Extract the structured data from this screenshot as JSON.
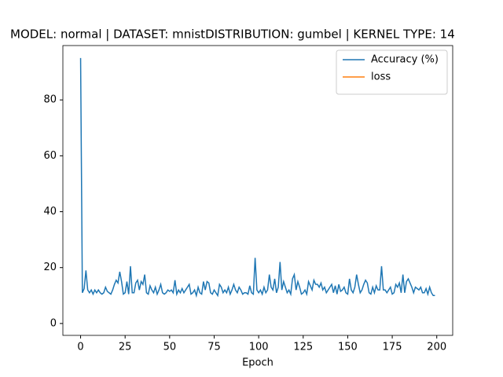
{
  "chart_data": {
    "type": "line",
    "title": "MODEL: normal | DATASET: mnistDISTRIBUTION: gumbel | KERNEL TYPE: 14",
    "x_label": "Epoch",
    "x": [
      0,
      1,
      2,
      3,
      4,
      5,
      6,
      7,
      8,
      9,
      10,
      11,
      12,
      13,
      14,
      15,
      16,
      17,
      18,
      19,
      20,
      21,
      22,
      23,
      24,
      25,
      26,
      27,
      28,
      29,
      30,
      31,
      32,
      33,
      34,
      35,
      36,
      37,
      38,
      39,
      40,
      41,
      42,
      43,
      44,
      45,
      46,
      47,
      48,
      49,
      50,
      51,
      52,
      53,
      54,
      55,
      56,
      57,
      58,
      59,
      60,
      61,
      62,
      63,
      64,
      65,
      66,
      67,
      68,
      69,
      70,
      71,
      72,
      73,
      74,
      75,
      76,
      77,
      78,
      79,
      80,
      81,
      82,
      83,
      84,
      85,
      86,
      87,
      88,
      89,
      90,
      91,
      92,
      93,
      94,
      95,
      96,
      97,
      98,
      99,
      100,
      101,
      102,
      103,
      104,
      105,
      106,
      107,
      108,
      109,
      110,
      111,
      112,
      113,
      114,
      115,
      116,
      117,
      118,
      119,
      120,
      121,
      122,
      123,
      124,
      125,
      126,
      127,
      128,
      129,
      130,
      131,
      132,
      133,
      134,
      135,
      136,
      137,
      138,
      139,
      140,
      141,
      142,
      143,
      144,
      145,
      146,
      147,
      148,
      149,
      150,
      151,
      152,
      153,
      154,
      155,
      156,
      157,
      158,
      159,
      160,
      161,
      162,
      163,
      164,
      165,
      166,
      167,
      168,
      169,
      170,
      171,
      172,
      173,
      174,
      175,
      176,
      177,
      178,
      179,
      180,
      181,
      182,
      183,
      184,
      185,
      186,
      187,
      188,
      189,
      190,
      191,
      192,
      193,
      194,
      195,
      196,
      197,
      198,
      199
    ],
    "series": [
      {
        "name": "Accuracy (%)",
        "color": "#1f77b4",
        "values": [
          95,
          11,
          12.5,
          19,
          12,
          11,
          12,
          10.5,
          12,
          11,
          12,
          11,
          10.5,
          11,
          13,
          11.5,
          11,
          10.5,
          12,
          14,
          15.5,
          14.5,
          18.5,
          15,
          10.5,
          11,
          15,
          10.5,
          20.5,
          11,
          11,
          14.5,
          15.5,
          12,
          15,
          14,
          17.5,
          11,
          10.5,
          13.5,
          12,
          11,
          13,
          10.5,
          12,
          14,
          11,
          10.5,
          11,
          12,
          11.5,
          12,
          11,
          15.5,
          10.5,
          12,
          11,
          12.5,
          11,
          12,
          13,
          14,
          10.5,
          11,
          12,
          10,
          13,
          11,
          10.5,
          15,
          12,
          15,
          14.5,
          11,
          10.5,
          12,
          11,
          10,
          14,
          13,
          11,
          12,
          11,
          13,
          10.5,
          12,
          14,
          12,
          11,
          13,
          12,
          10.5,
          11,
          11,
          10.5,
          13.5,
          11,
          10.5,
          23.5,
          12,
          11,
          12,
          10.5,
          13,
          11,
          12,
          17.5,
          13,
          12,
          16,
          11,
          13,
          22,
          12,
          15,
          13,
          11,
          12,
          10.5,
          16,
          17.5,
          12,
          15,
          13,
          10.5,
          11,
          12,
          10.5,
          15,
          13.5,
          12,
          15.5,
          14,
          14,
          13,
          14.5,
          12,
          13,
          11,
          12,
          13,
          14,
          11,
          13.5,
          10.5,
          14,
          11.5,
          12,
          13,
          11,
          10.5,
          16,
          12,
          11,
          13,
          17.5,
          14,
          11,
          12,
          14,
          15.5,
          14.5,
          11,
          10.5,
          13,
          11,
          13.5,
          12,
          12,
          20.5,
          12,
          12,
          11,
          12,
          13,
          10.5,
          11,
          14,
          13,
          14.5,
          11,
          17.5,
          11,
          15,
          16,
          14.5,
          13,
          11,
          13,
          12.5,
          12,
          13,
          11,
          11,
          12.5,
          10.5,
          13,
          11,
          10,
          10
        ]
      },
      {
        "name": "loss",
        "color": "#ff7f0e",
        "values": [
          null,
          null,
          null,
          null,
          null,
          null,
          null,
          null,
          null,
          null,
          null,
          null,
          null,
          null,
          null,
          null,
          null,
          null,
          null,
          null,
          null,
          null,
          null,
          null,
          null,
          null,
          null,
          null,
          null,
          null,
          null,
          null,
          null,
          null,
          null,
          null,
          null,
          null,
          null,
          null,
          null,
          null,
          null,
          null,
          null,
          null,
          null,
          null,
          null,
          null,
          null,
          null,
          null,
          null,
          null,
          null,
          null,
          null,
          null,
          null,
          null,
          null,
          null,
          null,
          null,
          null,
          null,
          null,
          null,
          null,
          null,
          null,
          null,
          null,
          null,
          null,
          null,
          null,
          null,
          null,
          null,
          null,
          null,
          null,
          null,
          null,
          null,
          null,
          null,
          null,
          null,
          null,
          null,
          null,
          null,
          null,
          null,
          null,
          null,
          null,
          null,
          null,
          null,
          null,
          null,
          null,
          null,
          null,
          null,
          null,
          null,
          null,
          null,
          null,
          null,
          null,
          null,
          null,
          null,
          null,
          null,
          null,
          null,
          null,
          null,
          null,
          null,
          null,
          null,
          null,
          null,
          null,
          null,
          null,
          null,
          null,
          null,
          null,
          null,
          null,
          null,
          null,
          null,
          null,
          null,
          null,
          null,
          null,
          null,
          null,
          null,
          null,
          null,
          null,
          null,
          null,
          null,
          null,
          null,
          null,
          null,
          null,
          null,
          null,
          null,
          null,
          null,
          null,
          null,
          null,
          null,
          null,
          null,
          null,
          null,
          null,
          null,
          null,
          null,
          null,
          null,
          null,
          null,
          null,
          null,
          null,
          null,
          null,
          null,
          null,
          null,
          null,
          null,
          null,
          null,
          null,
          null,
          null,
          null,
          null
        ]
      }
    ],
    "xlim": [
      -9.95,
      208.95
    ],
    "xticks": [
      0,
      25,
      50,
      75,
      100,
      125,
      150,
      175,
      200
    ],
    "ylim": [
      -4.25,
      99.45
    ],
    "yticks": [
      0,
      20,
      40,
      60,
      80
    ],
    "legend": "upper right"
  }
}
